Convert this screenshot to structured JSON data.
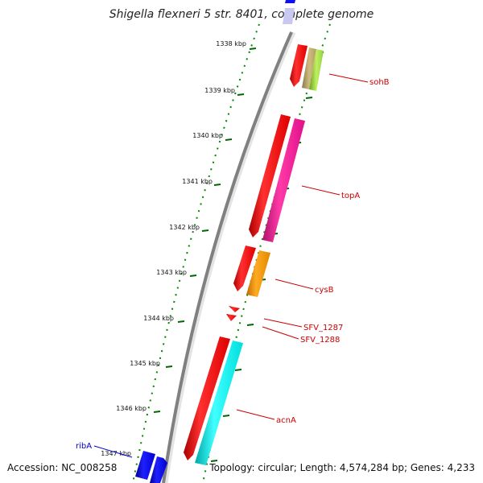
{
  "title": "Shigella flexneri 5 str. 8401, complete genome",
  "footer": {
    "accession": "Accession: NC_008258",
    "topology": "Topology: circular; Length: 4,574,284 bp; Genes: 4,233"
  },
  "ticks": [
    "1338 kbp",
    "1339 kbp",
    "1340 kbp",
    "1341 kbp",
    "1342 kbp",
    "1343 kbp",
    "1344 kbp",
    "1345 kbp",
    "1346 kbp",
    "1347 kbp"
  ],
  "genes": {
    "sohB": "sohB",
    "topA": "topA",
    "cysB": "cysB",
    "sfv1287": "SFV_1287",
    "sfv1288": "SFV_1288",
    "acnA": "acnA",
    "ribA": "ribA"
  },
  "colors": {
    "cds": "#ff0000",
    "backbone": "#808080",
    "tick": "#007700",
    "sohB": "#c8b070",
    "sohB_alt": "#a8e040",
    "topA": "#ff1493",
    "cysB": "#ff9900",
    "acnA": "#00ffff",
    "ribA": "#0000ff",
    "label": "#cc0000",
    "label_blue": "#0000cc"
  }
}
